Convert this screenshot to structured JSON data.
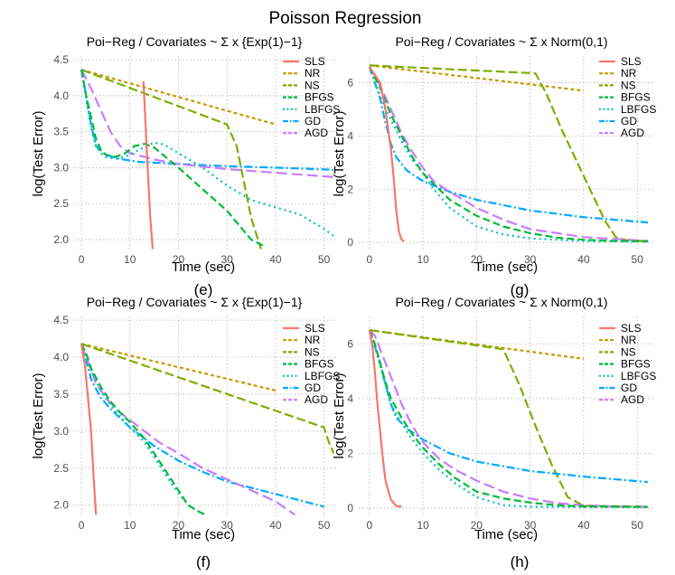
{
  "figure": {
    "suptitle": "Poisson Regression",
    "colors": {
      "SLS": "#F8766D",
      "NR": "#C49A00",
      "NS": "#7CAE00",
      "BFGS": "#00BA38",
      "LBFGS": "#00BFC4",
      "GD": "#00A9FF",
      "AGD": "#C77CFF"
    },
    "series_order": [
      "SLS",
      "NR",
      "NS",
      "BFGS",
      "LBFGS",
      "GD",
      "AGD"
    ]
  },
  "chart_data": [
    {
      "type": "line",
      "id": "e",
      "caption": "(e)",
      "title": "Poi−Reg / Covariates ~ Σ x {Exp(1)−1}",
      "xlabel": "Time (sec)",
      "ylabel": "log(Test Error)",
      "xlim": [
        -1.5,
        52.5
      ],
      "ylim": [
        1.85,
        4.55
      ],
      "xticks": [
        0,
        10,
        20,
        30,
        40,
        50
      ],
      "yticks": [
        2.0,
        2.5,
        3.0,
        3.5,
        4.0,
        4.5
      ],
      "ytick_labels": [
        "2.0",
        "2.5",
        "3.0",
        "3.5",
        "4.0",
        "4.5"
      ],
      "series": [
        {
          "name": "SLS",
          "x": [
            12.8,
            13.5,
            14.2,
            14.7
          ],
          "y": [
            4.2,
            3.2,
            2.3,
            1.87
          ]
        },
        {
          "name": "NR",
          "x": [
            0,
            40
          ],
          "y": [
            4.36,
            3.6
          ]
        },
        {
          "name": "NS",
          "x": [
            0,
            30,
            32,
            33.5,
            35,
            37
          ],
          "y": [
            4.36,
            3.6,
            3.3,
            2.8,
            2.3,
            1.87
          ]
        },
        {
          "name": "BFGS",
          "x": [
            0,
            1,
            2,
            3,
            4,
            5,
            7,
            9,
            11,
            13,
            15,
            20,
            25,
            30,
            35,
            38
          ],
          "y": [
            4.36,
            4.0,
            3.7,
            3.4,
            3.25,
            3.18,
            3.15,
            3.2,
            3.3,
            3.33,
            3.28,
            3.0,
            2.7,
            2.4,
            2.0,
            1.9
          ]
        },
        {
          "name": "LBFGS",
          "x": [
            0,
            1,
            2,
            3,
            4,
            5,
            7,
            9,
            12,
            15,
            17,
            20,
            25,
            30,
            35,
            40,
            45,
            50,
            52
          ],
          "y": [
            4.36,
            3.95,
            3.55,
            3.3,
            3.2,
            3.15,
            3.12,
            3.15,
            3.25,
            3.35,
            3.32,
            3.2,
            3.0,
            2.75,
            2.55,
            2.45,
            2.35,
            2.15,
            2.05
          ]
        },
        {
          "name": "GD",
          "x": [
            0,
            1,
            2,
            3,
            5,
            8,
            12,
            20,
            30,
            40,
            52
          ],
          "y": [
            4.36,
            4.0,
            3.6,
            3.3,
            3.18,
            3.12,
            3.08,
            3.05,
            3.02,
            3.0,
            2.97
          ]
        },
        {
          "name": "AGD",
          "x": [
            0,
            2,
            4,
            6,
            8,
            10,
            13,
            16,
            20,
            30,
            40,
            52
          ],
          "y": [
            4.36,
            4.1,
            3.8,
            3.5,
            3.3,
            3.2,
            3.15,
            3.1,
            3.05,
            2.98,
            2.93,
            2.87
          ]
        }
      ]
    },
    {
      "type": "line",
      "id": "g",
      "caption": "(g)",
      "title": "Poi−Reg / Covariates ~ Σ x Norm(0,1)",
      "xlabel": "Time (sec)",
      "ylabel": "log(Test Error)",
      "xlim": [
        -2,
        53
      ],
      "ylim": [
        -0.3,
        7.0
      ],
      "xticks": [
        0,
        10,
        20,
        30,
        40,
        50
      ],
      "yticks": [
        0,
        2,
        4,
        6
      ],
      "ytick_labels": [
        "0",
        "2",
        "4",
        "6"
      ],
      "series": [
        {
          "name": "SLS",
          "x": [
            0,
            2,
            3,
            4,
            4.5,
            5,
            5.5,
            6,
            6.5
          ],
          "y": [
            6.6,
            6.0,
            5.0,
            3.5,
            2.5,
            1.2,
            0.4,
            0.1,
            0.05
          ]
        },
        {
          "name": "NR",
          "x": [
            0,
            40
          ],
          "y": [
            6.65,
            5.7
          ]
        },
        {
          "name": "NS",
          "x": [
            0,
            31,
            33,
            36,
            40,
            44,
            46,
            48,
            52
          ],
          "y": [
            6.65,
            6.35,
            5.6,
            4.2,
            2.5,
            0.8,
            0.2,
            0.08,
            0.05
          ]
        },
        {
          "name": "BFGS",
          "x": [
            0,
            1,
            2,
            3,
            4,
            6,
            8,
            10,
            12,
            15,
            20,
            25,
            30,
            35,
            40,
            45,
            52
          ],
          "y": [
            6.6,
            6.2,
            5.8,
            5.3,
            4.8,
            4.0,
            3.2,
            2.6,
            2.2,
            1.6,
            1.0,
            0.6,
            0.35,
            0.18,
            0.1,
            0.06,
            0.04
          ]
        },
        {
          "name": "LBFGS",
          "x": [
            0,
            1,
            2,
            3,
            4,
            6,
            8,
            10,
            12,
            15,
            20,
            25,
            30,
            40,
            52
          ],
          "y": [
            6.6,
            6.0,
            5.5,
            5.0,
            4.6,
            3.8,
            3.1,
            2.6,
            2.0,
            1.3,
            0.6,
            0.3,
            0.15,
            0.05,
            0.03
          ]
        },
        {
          "name": "GD",
          "x": [
            0,
            2,
            3,
            4,
            5,
            7,
            10,
            15,
            20,
            30,
            40,
            52
          ],
          "y": [
            6.6,
            5.4,
            4.5,
            3.7,
            3.2,
            2.7,
            2.3,
            1.9,
            1.6,
            1.2,
            0.95,
            0.75
          ]
        },
        {
          "name": "AGD",
          "x": [
            0,
            2,
            4,
            6,
            8,
            10,
            12,
            15,
            20,
            25,
            30,
            40,
            52
          ],
          "y": [
            6.6,
            5.9,
            5.0,
            4.1,
            3.4,
            2.8,
            2.3,
            1.9,
            1.3,
            0.85,
            0.5,
            0.2,
            0.06
          ]
        }
      ]
    },
    {
      "type": "line",
      "id": "f",
      "caption": "(f)",
      "title": "Poi−Reg / Covariates ~ Σ x {Exp(1)−1}",
      "xlabel": "Time (sec)",
      "ylabel": "log(Test Error)",
      "xlim": [
        -1.5,
        52.5
      ],
      "ylim": [
        1.85,
        4.55
      ],
      "xticks": [
        0,
        10,
        20,
        30,
        40,
        50
      ],
      "yticks": [
        2.0,
        2.5,
        3.0,
        3.5,
        4.0,
        4.5
      ],
      "ytick_labels": [
        "2.0",
        "2.5",
        "3.0",
        "3.5",
        "4.0",
        "4.5"
      ],
      "series": [
        {
          "name": "SLS",
          "x": [
            0,
            0.7,
            1.3,
            2.0,
            2.5,
            3.0
          ],
          "y": [
            4.18,
            3.9,
            3.5,
            3.0,
            2.4,
            1.87
          ]
        },
        {
          "name": "NR",
          "x": [
            0,
            40
          ],
          "y": [
            4.18,
            3.55
          ]
        },
        {
          "name": "NS",
          "x": [
            0,
            50,
            51,
            52
          ],
          "y": [
            4.18,
            3.05,
            2.85,
            2.7
          ]
        },
        {
          "name": "BFGS",
          "x": [
            0,
            1,
            2,
            4,
            6,
            8,
            10,
            13,
            16,
            19,
            22,
            24,
            25.5
          ],
          "y": [
            4.18,
            4.05,
            3.85,
            3.6,
            3.4,
            3.25,
            3.12,
            2.9,
            2.6,
            2.3,
            2.0,
            1.92,
            1.87
          ]
        },
        {
          "name": "LBFGS",
          "x": [
            0,
            1,
            2,
            4,
            6,
            8,
            10,
            13,
            16,
            19,
            22,
            24,
            25.5
          ],
          "y": [
            4.18,
            4.0,
            3.82,
            3.55,
            3.35,
            3.2,
            3.05,
            2.85,
            2.55,
            2.25,
            2.0,
            1.92,
            1.87
          ]
        },
        {
          "name": "GD",
          "x": [
            0,
            1,
            2,
            4,
            6,
            10,
            15,
            20,
            25,
            30,
            40,
            50
          ],
          "y": [
            4.18,
            3.95,
            3.7,
            3.45,
            3.3,
            3.05,
            2.8,
            2.6,
            2.45,
            2.32,
            2.15,
            1.98
          ]
        },
        {
          "name": "AGD",
          "x": [
            0,
            1,
            3,
            5,
            8,
            12,
            16,
            20,
            25,
            30,
            35,
            40,
            44
          ],
          "y": [
            4.18,
            4.0,
            3.65,
            3.45,
            3.25,
            3.05,
            2.85,
            2.7,
            2.5,
            2.35,
            2.2,
            2.05,
            1.87
          ]
        }
      ]
    },
    {
      "type": "line",
      "id": "h",
      "caption": "(h)",
      "title": "Poi−Reg / Covariates ~ Σ x Norm(0,1)",
      "xlabel": "Time (sec)",
      "ylabel": "log(Test Error)",
      "xlim": [
        -2,
        53
      ],
      "ylim": [
        -0.3,
        7.0
      ],
      "xticks": [
        0,
        10,
        20,
        30,
        40,
        50
      ],
      "yticks": [
        0,
        2,
        4,
        6
      ],
      "ytick_labels": [
        "0",
        "2",
        "4",
        "6"
      ],
      "series": [
        {
          "name": "SLS",
          "x": [
            0,
            0.5,
            1,
            1.5,
            2,
            2.5,
            3,
            4,
            5,
            6
          ],
          "y": [
            6.5,
            6.0,
            5.0,
            3.8,
            2.8,
            1.8,
            1.0,
            0.3,
            0.08,
            0.05
          ]
        },
        {
          "name": "NR",
          "x": [
            0,
            40
          ],
          "y": [
            6.5,
            5.45
          ]
        },
        {
          "name": "NS",
          "x": [
            0,
            25,
            28,
            31,
            34,
            37,
            40,
            52
          ],
          "y": [
            6.5,
            5.8,
            4.5,
            3.0,
            1.6,
            0.4,
            0.08,
            0.05
          ]
        },
        {
          "name": "BFGS",
          "x": [
            0,
            1,
            2,
            3,
            4,
            6,
            8,
            10,
            13,
            16,
            20,
            25,
            30,
            35,
            40,
            52
          ],
          "y": [
            6.5,
            6.0,
            5.3,
            4.6,
            4.0,
            3.3,
            2.7,
            2.2,
            1.6,
            1.1,
            0.6,
            0.35,
            0.2,
            0.1,
            0.06,
            0.04
          ]
        },
        {
          "name": "LBFGS",
          "x": [
            0,
            1,
            2,
            3,
            4,
            6,
            8,
            10,
            13,
            16,
            20,
            25,
            30,
            40,
            52
          ],
          "y": [
            6.5,
            5.9,
            5.2,
            4.5,
            3.8,
            3.1,
            2.5,
            2.0,
            1.4,
            0.9,
            0.4,
            0.1,
            0.05,
            0.03,
            0.03
          ]
        },
        {
          "name": "GD",
          "x": [
            0,
            2,
            3,
            4,
            5,
            7,
            10,
            15,
            20,
            30,
            40,
            52
          ],
          "y": [
            6.5,
            5.3,
            4.5,
            3.8,
            3.3,
            2.9,
            2.5,
            2.0,
            1.7,
            1.35,
            1.15,
            0.95
          ]
        },
        {
          "name": "AGD",
          "x": [
            0,
            1,
            2,
            4,
            6,
            8,
            10,
            13,
            16,
            20,
            25,
            30,
            35,
            40,
            45,
            52
          ],
          "y": [
            6.5,
            6.3,
            5.8,
            4.8,
            3.8,
            3.0,
            2.4,
            1.8,
            1.4,
            1.0,
            0.6,
            0.35,
            0.18,
            0.1,
            0.06,
            0.04
          ]
        }
      ]
    }
  ]
}
